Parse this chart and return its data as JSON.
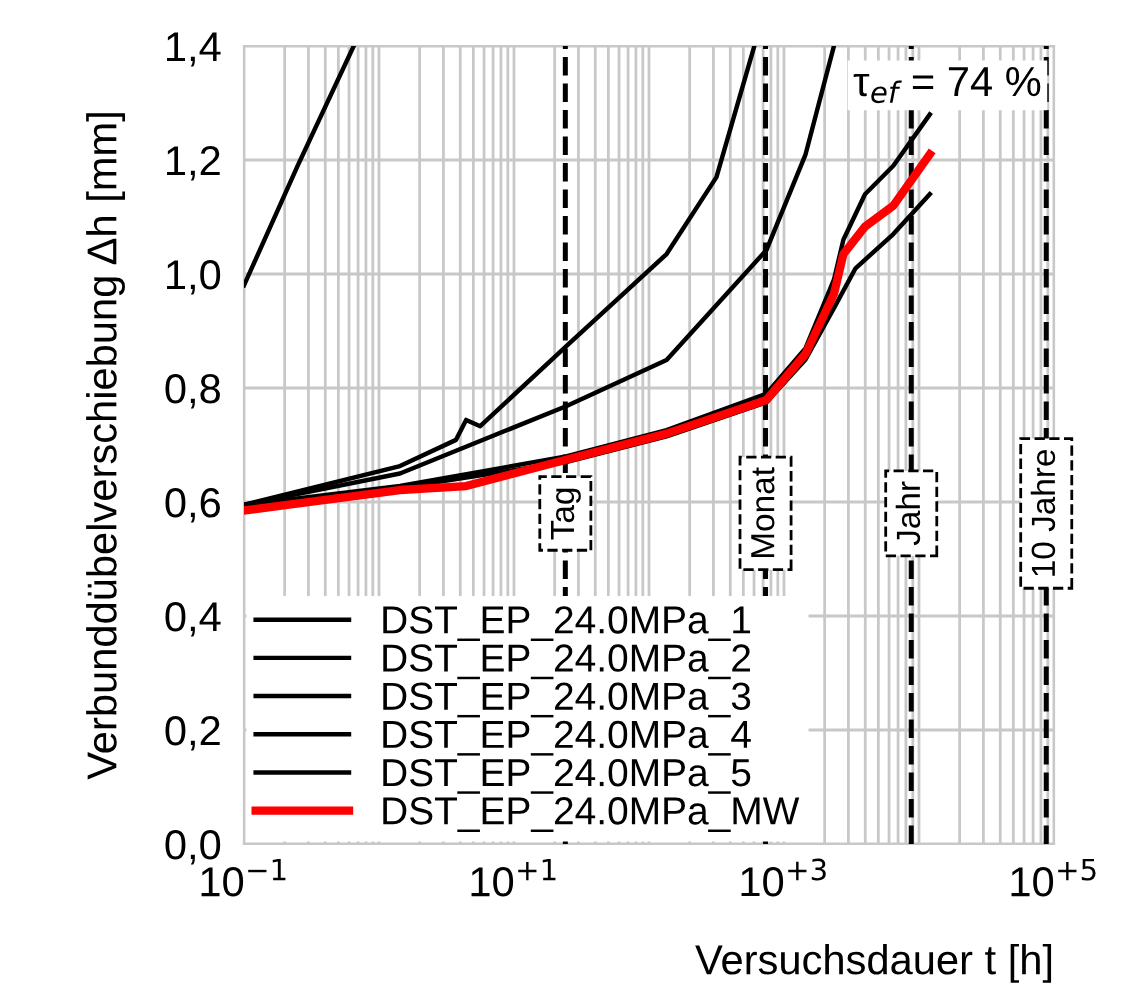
{
  "chart_data": {
    "type": "line",
    "xlabel": "Versuchsdauer t [h]",
    "ylabel": "Verbunddübelverschiebung Δh [mm]",
    "log": "x",
    "xlim": [
      0.1,
      100000
    ],
    "ylim": [
      0,
      1.4
    ],
    "xticks": [
      {
        "value": 0.1,
        "label": "10$^{−1}$"
      },
      {
        "value": 1,
        "label": null
      },
      {
        "value": 10,
        "label": "10$^{+1}$"
      },
      {
        "value": 100,
        "label": null
      },
      {
        "value": 1000,
        "label": "10$^{+3}$"
      },
      {
        "value": 10000,
        "label": null
      },
      {
        "value": 100000,
        "label": "10$^{+5}$"
      }
    ],
    "yticks": [
      {
        "value": 0,
        "label": "0,0"
      },
      {
        "value": 0.2,
        "label": "0,2"
      },
      {
        "value": 0.4,
        "label": "0,4"
      },
      {
        "value": 0.6,
        "label": "0,6"
      },
      {
        "value": 0.8,
        "label": "0,8"
      },
      {
        "value": 1.0,
        "label": "1,0"
      },
      {
        "value": 1.2,
        "label": "1,2"
      },
      {
        "value": 1.4,
        "label": "1,4"
      }
    ],
    "grid": true,
    "legend": "bottom left",
    "marker": "none",
    "line_style": "solid",
    "annotations": [
      "τ$_{ef}$ = 74 %"
    ],
    "ref_lines": [
      {
        "axis": "x",
        "value": 24,
        "label": "Tag",
        "color": "#000000",
        "line_style": "dashed"
      },
      {
        "axis": "x",
        "value": 730,
        "label": "Monat",
        "color": "#000000",
        "line_style": "dashed"
      },
      {
        "axis": "x",
        "value": 8760,
        "label": "Jahr",
        "color": "#000000",
        "line_style": "dashed"
      },
      {
        "axis": "x",
        "value": 87600,
        "label": "10 Jahre",
        "color": "#000000",
        "line_style": "dashed"
      }
    ],
    "series": [
      {
        "name": "DST_EP_24.0MPa_1",
        "color": "#000000",
        "x": [
          0.1,
          0.25,
          0.65
        ],
        "values": [
          0.98,
          1.19,
          1.4
        ]
      },
      {
        "name": "DST_EP_24.0MPa_2",
        "color": "#000000",
        "x": [
          0.1,
          1.43,
          3.72,
          4.42,
          5.62,
          24.3,
          135,
          316,
          603
        ],
        "values": [
          0.595,
          0.663,
          0.709,
          0.744,
          0.733,
          0.873,
          1.035,
          1.17,
          1.4
        ]
      },
      {
        "name": "DST_EP_24.0MPa_3",
        "color": "#000000",
        "x": [
          0.1,
          1.43,
          24.3,
          135,
          741,
          1445,
          2344
        ],
        "values": [
          0.595,
          0.65,
          0.768,
          0.849,
          1.042,
          1.21,
          1.4
        ]
      },
      {
        "name": "DST_EP_24.0MPa_4",
        "color": "#000000",
        "x": [
          0.1,
          1.43,
          24.3,
          135,
          741,
          1445,
          2344,
          2754,
          3981,
          6457,
          12023
        ],
        "values": [
          0.595,
          0.628,
          0.68,
          0.726,
          0.79,
          0.87,
          0.99,
          1.06,
          1.14,
          1.19,
          1.28
        ]
      },
      {
        "name": "DST_EP_24.0MPa_5",
        "color": "#000000",
        "x": [
          0.1,
          1.43,
          24.3,
          135,
          741,
          1445,
          2344,
          3388,
          6457,
          12023
        ],
        "values": [
          0.59,
          0.625,
          0.67,
          0.715,
          0.775,
          0.85,
          0.94,
          1.01,
          1.07,
          1.14
        ]
      },
      {
        "name": "DST_EP_24.0MPa_MW",
        "color": "#ff0000",
        "x": [
          0.1,
          1.43,
          4.42,
          24.3,
          135,
          741,
          1445,
          2344,
          2754,
          3981,
          6457,
          12023
        ],
        "values": [
          0.585,
          0.621,
          0.628,
          0.674,
          0.72,
          0.779,
          0.86,
          0.965,
          1.035,
          1.083,
          1.12,
          1.21
        ]
      }
    ]
  }
}
